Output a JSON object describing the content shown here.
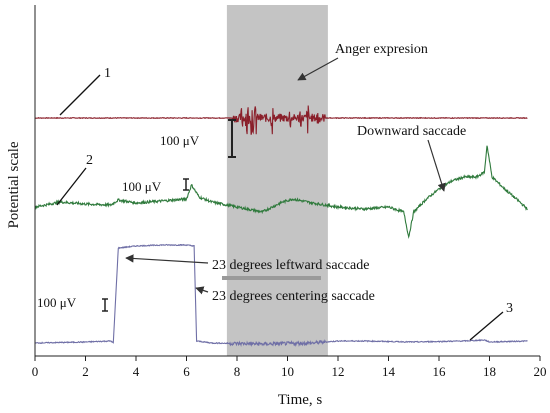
{
  "chart_data": {
    "type": "line",
    "xlabel": "Time, s",
    "ylabel": "Potential scale",
    "xlim": [
      0,
      20
    ],
    "xticks": [
      "0",
      "2",
      "4",
      "6",
      "8",
      "10",
      "12",
      "14",
      "16",
      "18",
      "20"
    ],
    "grid": false,
    "shaded_interval": {
      "x": [
        7.6,
        11.6
      ],
      "color": "#c4c4c4"
    },
    "series": [
      {
        "label": "1",
        "color": "#8a1f2a",
        "baseline": [
          [
            0.0,
            0
          ],
          [
            3.0,
            0
          ],
          [
            7.5,
            0
          ],
          [
            7.6,
            0
          ],
          [
            11.6,
            0
          ],
          [
            12.0,
            0
          ],
          [
            19.5,
            0
          ]
        ],
        "burst": {
          "start": 7.8,
          "end": 11.5,
          "peaks": [
            [
              8.2,
              0.5
            ],
            [
              8.4,
              0.9
            ],
            [
              8.6,
              1.0
            ],
            [
              8.75,
              0.7
            ],
            [
              9.4,
              0.55
            ],
            [
              10.1,
              0.45
            ],
            [
              10.5,
              0.5
            ],
            [
              10.8,
              0.55
            ],
            [
              11.2,
              0.4
            ]
          ]
        }
      },
      {
        "label": "2",
        "color": "#2f7a3c",
        "points": [
          [
            0.0,
            0.0
          ],
          [
            1.0,
            0.05
          ],
          [
            2.0,
            0.03
          ],
          [
            3.0,
            0.02
          ],
          [
            3.3,
            0.07
          ],
          [
            4.0,
            0.04
          ],
          [
            5.0,
            0.06
          ],
          [
            6.0,
            0.08
          ],
          [
            6.2,
            0.22
          ],
          [
            6.5,
            0.1
          ],
          [
            7.0,
            0.05
          ],
          [
            8.0,
            0.0
          ],
          [
            9.0,
            -0.05
          ],
          [
            9.8,
            0.05
          ],
          [
            10.2,
            0.08
          ],
          [
            11.0,
            0.04
          ],
          [
            12.0,
            0.0
          ],
          [
            13.0,
            -0.02
          ],
          [
            14.0,
            0.0
          ],
          [
            14.6,
            -0.05
          ],
          [
            14.8,
            -0.3
          ],
          [
            15.0,
            -0.05
          ],
          [
            15.5,
            0.08
          ],
          [
            16.0,
            0.18
          ],
          [
            16.5,
            0.26
          ],
          [
            17.0,
            0.3
          ],
          [
            17.5,
            0.3
          ],
          [
            17.8,
            0.35
          ],
          [
            17.9,
            0.62
          ],
          [
            18.1,
            0.3
          ],
          [
            18.6,
            0.18
          ],
          [
            19.2,
            0.05
          ],
          [
            19.5,
            -0.02
          ]
        ]
      },
      {
        "label": "3",
        "color": "#6f6fa6",
        "points": [
          [
            0.0,
            0.0
          ],
          [
            2.0,
            0.01
          ],
          [
            3.0,
            0.02
          ],
          [
            3.1,
            0.0
          ],
          [
            3.3,
            0.95
          ],
          [
            4.0,
            0.97
          ],
          [
            5.0,
            0.98
          ],
          [
            6.0,
            0.98
          ],
          [
            6.3,
            0.97
          ],
          [
            6.4,
            0.02
          ],
          [
            7.0,
            0.0
          ],
          [
            9.0,
            -0.01
          ],
          [
            11.0,
            0.0
          ],
          [
            12.0,
            0.02
          ],
          [
            13.0,
            0.02
          ],
          [
            15.0,
            0.01
          ],
          [
            17.0,
            0.02
          ],
          [
            17.8,
            0.03
          ],
          [
            18.0,
            0.01
          ],
          [
            19.5,
            0.02
          ]
        ]
      }
    ],
    "annotations": {
      "anger": "Anger expresion",
      "downward": "Downward saccade",
      "leftward": "23 degrees leftward saccade",
      "centering": "23 degrees centering saccade",
      "scale_1": "100 μV",
      "scale_2": "100 μV",
      "scale_3": "100 μV"
    }
  }
}
